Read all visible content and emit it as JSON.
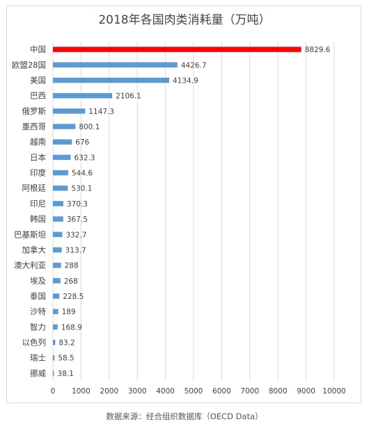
{
  "chart_data": {
    "type": "bar",
    "orientation": "horizontal",
    "title": "2018年各国肉类消耗量（万吨）",
    "categories": [
      "中国",
      "欧盟28国",
      "美国",
      "巴西",
      "俄罗斯",
      "墨西哥",
      "越南",
      "日本",
      "印度",
      "阿根廷",
      "印尼",
      "韩国",
      "巴基斯坦",
      "加拿大",
      "澳大利亚",
      "埃及",
      "泰国",
      "沙特",
      "智力",
      "以色列",
      "瑞士",
      "挪威"
    ],
    "values": [
      8829.6,
      4426.7,
      4134.9,
      2106.1,
      1147.3,
      800.1,
      676,
      632.3,
      544.6,
      530.1,
      370.3,
      367.5,
      332.7,
      313.7,
      288,
      268,
      228.5,
      189,
      168.9,
      83.2,
      58.5,
      38.1
    ],
    "value_labels": [
      "8829.6",
      "4426.7",
      "4134.9",
      "2106.1",
      "1147.3",
      "800.1",
      "676",
      "632.3",
      "544.6",
      "530.1",
      "370.3",
      "367.5",
      "332.7",
      "313.7",
      "288",
      "268",
      "228.5",
      "189",
      "168.9",
      "83.2",
      "58.5",
      "38.1"
    ],
    "xlim": [
      0,
      10000
    ],
    "xticks": [
      "0",
      "1000",
      "2000",
      "3000",
      "4000",
      "5000",
      "6000",
      "7000",
      "8000",
      "9000",
      "10000"
    ],
    "grid": "vertical",
    "colors": {
      "highlight": "#ff0000",
      "bar": "#5b9bd5",
      "grid": "#d9d9d9",
      "text": "#404040"
    },
    "highlight_index": 0
  },
  "footer": {
    "source": "数据来源：经合组织数据库（OECD Data）"
  }
}
